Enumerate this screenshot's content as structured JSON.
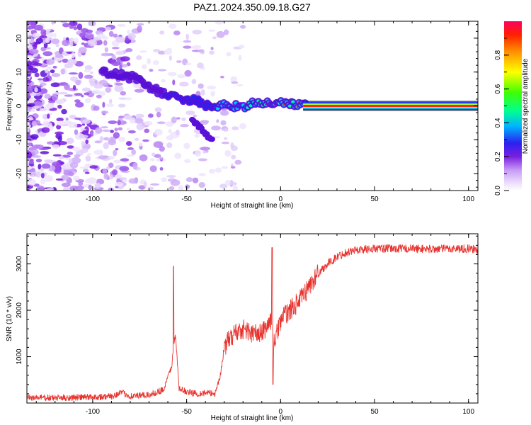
{
  "title": "PAZ1.2024.350.09.18.G27",
  "chart_data": [
    {
      "type": "heatmap",
      "xlabel": "Height of straight line (km)",
      "ylabel": "Frequency (Hz)",
      "xlim": [
        -135,
        105
      ],
      "ylim": [
        -25,
        25
      ],
      "xticks": [
        -100,
        -50,
        0,
        50,
        100
      ],
      "xtick_labels": [
        "-100",
        "-50",
        "0",
        "50",
        "100"
      ],
      "yticks": [
        -20,
        -10,
        0,
        10,
        20
      ],
      "ytick_labels": [
        "-20",
        "-10",
        "0",
        "10",
        "20"
      ],
      "colorbar": {
        "label": "Normalized spectral amplitude",
        "range": [
          0,
          1
        ],
        "ticks": [
          0.0,
          0.2,
          0.4,
          0.6,
          0.8
        ],
        "tick_labels": [
          "0.0",
          "0.2",
          "0.4",
          "0.6",
          "0.8"
        ],
        "colormap": [
          "#ffffff",
          "#ecdcff",
          "#c89cf5",
          "#7a1fe0",
          "#2b20f0",
          "#00b4ff",
          "#00ff90",
          "#80ff00",
          "#ffff00",
          "#ff9000",
          "#ff2000",
          "#ff0060"
        ]
      },
      "ridge": {
        "description_points_x": [
          -95,
          -85,
          -75,
          -68,
          -60,
          -50,
          -42,
          -36,
          -30,
          -20,
          -10,
          0,
          10,
          15,
          20,
          105
        ],
        "description_points_y": [
          10,
          9,
          8,
          5,
          3,
          2,
          1,
          -1,
          0,
          0,
          1,
          1,
          0,
          0,
          0,
          0
        ],
        "steady_start": 15,
        "steady_frequency": 0
      },
      "grid": false
    },
    {
      "type": "line",
      "xlabel": "Height of straight line (km)",
      "ylabel": "SNR (10 * v/v)",
      "xlim": [
        -135,
        105
      ],
      "ylim": [
        0,
        3650
      ],
      "xticks": [
        -100,
        -50,
        0,
        50,
        100
      ],
      "xtick_labels": [
        "-100",
        "-50",
        "0",
        "50",
        "100"
      ],
      "yticks": [
        1000,
        2000,
        3000
      ],
      "ytick_labels": [
        "1000",
        "2000",
        "3000"
      ],
      "series_color": "#e8322d",
      "x": [
        -135,
        -120,
        -100,
        -90,
        -85,
        -80,
        -70,
        -62,
        -58,
        -56,
        -54,
        -50,
        -45,
        -40,
        -35,
        -32,
        -30,
        -25,
        -20,
        -15,
        -10,
        -5,
        -4,
        0,
        5,
        10,
        15,
        20,
        25,
        30,
        35,
        40,
        50,
        60,
        70,
        80,
        90,
        100,
        105
      ],
      "y": [
        120,
        110,
        130,
        140,
        230,
        150,
        170,
        300,
        800,
        1500,
        300,
        250,
        200,
        220,
        200,
        600,
        1200,
        1500,
        1600,
        1500,
        1500,
        1800,
        1200,
        1800,
        2000,
        2200,
        2500,
        2800,
        3000,
        3150,
        3250,
        3300,
        3330,
        3330,
        3330,
        3320,
        3330,
        3330,
        3300
      ],
      "spikes": [
        {
          "x": -57,
          "y": 2950
        },
        {
          "x": -4.5,
          "y": 3350
        },
        {
          "x": -4,
          "y": 400
        }
      ],
      "grid": false
    }
  ]
}
